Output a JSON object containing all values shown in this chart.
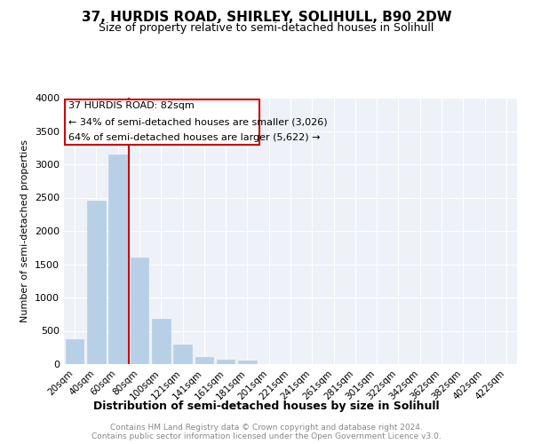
{
  "title": "37, HURDIS ROAD, SHIRLEY, SOLIHULL, B90 2DW",
  "subtitle": "Size of property relative to semi-detached houses in Solihull",
  "xlabel": "Distribution of semi-detached houses by size in Solihull",
  "ylabel": "Number of semi-detached properties",
  "categories": [
    "20sqm",
    "40sqm",
    "60sqm",
    "80sqm",
    "100sqm",
    "121sqm",
    "141sqm",
    "161sqm",
    "181sqm",
    "201sqm",
    "221sqm",
    "241sqm",
    "261sqm",
    "281sqm",
    "301sqm",
    "322sqm",
    "342sqm",
    "362sqm",
    "382sqm",
    "402sqm",
    "422sqm"
  ],
  "values": [
    380,
    2450,
    3150,
    1600,
    680,
    290,
    110,
    65,
    55,
    0,
    0,
    0,
    0,
    0,
    0,
    0,
    0,
    0,
    0,
    0,
    0
  ],
  "bar_color": "#b8cfe8",
  "bar_edgecolor": "#b8cfe8",
  "vline_color": "#cc0000",
  "vline_x_index": 3,
  "box_text_line1": "37 HURDIS ROAD: 82sqm",
  "box_text_line2": "← 34% of semi-detached houses are smaller (3,026)",
  "box_text_line3": "64% of semi-detached houses are larger (5,622) →",
  "box_color": "#cc0000",
  "ylim": [
    0,
    4000
  ],
  "yticks": [
    0,
    500,
    1000,
    1500,
    2000,
    2500,
    3000,
    3500,
    4000
  ],
  "footnote1": "Contains HM Land Registry data © Crown copyright and database right 2024.",
  "footnote2": "Contains public sector information licensed under the Open Government Licence v3.0.",
  "plot_background": "#eef2f8",
  "grid_color": "#ffffff",
  "title_fontsize": 11,
  "subtitle_fontsize": 9
}
